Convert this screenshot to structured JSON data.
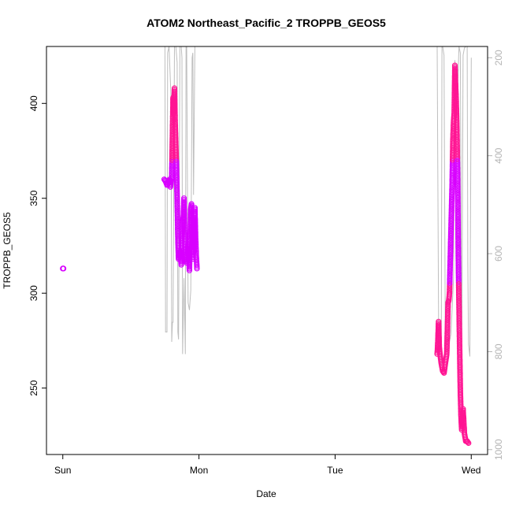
{
  "chart_data": {
    "type": "scatter",
    "title": "ATOM2 Northeast_Pacific_2 TROPPB_GEOS5",
    "xlabel": "Date",
    "ylabel": "TROPPB_GEOS5",
    "x_tick_labels": [
      "Sun",
      "Mon",
      "Tue",
      "Wed"
    ],
    "x_tick_values_days": [
      0,
      1,
      2,
      3
    ],
    "xlim_days": [
      -0.12,
      3.12
    ],
    "ylim": [
      215,
      430
    ],
    "y_ticks": [
      250,
      300,
      350,
      400
    ],
    "y2_ticks": [
      200,
      400,
      600,
      800,
      1000
    ],
    "y2lim": [
      1010,
      177
    ],
    "grid": false,
    "legend": "none",
    "colors": {
      "axis": "#000000",
      "secondary_axis": "#b4b4b4",
      "secondary_line": "#bebebe",
      "points_low": "#ff1493",
      "points_high": "#d800ff"
    },
    "series": [
      {
        "values": [
          [
            0.0,
            313
          ],
          [
            0.005,
            313
          ],
          [
            0.745,
            360
          ],
          [
            0.755,
            359
          ],
          [
            0.765,
            357
          ],
          [
            0.775,
            358
          ],
          [
            0.785,
            360
          ],
          [
            0.79,
            356
          ],
          [
            0.8,
            361
          ],
          [
            0.81,
            403
          ],
          [
            0.815,
            395
          ],
          [
            0.82,
            408
          ],
          [
            0.825,
            390
          ],
          [
            0.83,
            378
          ],
          [
            0.835,
            365
          ],
          [
            0.84,
            350
          ],
          [
            0.845,
            330
          ],
          [
            0.85,
            318
          ],
          [
            0.86,
            322
          ],
          [
            0.87,
            315
          ],
          [
            0.88,
            338
          ],
          [
            0.885,
            340
          ],
          [
            0.89,
            350
          ],
          [
            0.895,
            332
          ],
          [
            0.9,
            320
          ],
          [
            0.91,
            316
          ],
          [
            0.92,
            326
          ],
          [
            0.93,
            312
          ],
          [
            0.935,
            330
          ],
          [
            0.94,
            344
          ],
          [
            0.945,
            347
          ],
          [
            0.95,
            332
          ],
          [
            0.955,
            318
          ],
          [
            0.96,
            340
          ],
          [
            0.965,
            322
          ],
          [
            0.97,
            345
          ],
          [
            0.975,
            330
          ],
          [
            0.98,
            320
          ],
          [
            0.985,
            313
          ],
          [
            2.75,
            268
          ],
          [
            2.755,
            275
          ],
          [
            2.76,
            285
          ],
          [
            2.765,
            272
          ],
          [
            2.77,
            268
          ],
          [
            2.78,
            263
          ],
          [
            2.79,
            259
          ],
          [
            2.8,
            258
          ],
          [
            2.81,
            263
          ],
          [
            2.82,
            268
          ],
          [
            2.83,
            295
          ],
          [
            2.835,
            296
          ],
          [
            2.84,
            300
          ],
          [
            2.85,
            330
          ],
          [
            2.86,
            358
          ],
          [
            2.865,
            380
          ],
          [
            2.87,
            390
          ],
          [
            2.875,
            395
          ],
          [
            2.88,
            420
          ],
          [
            2.885,
            410
          ],
          [
            2.89,
            400
          ],
          [
            2.895,
            385
          ],
          [
            2.9,
            360
          ],
          [
            2.905,
            320
          ],
          [
            2.91,
            295
          ],
          [
            2.915,
            270
          ],
          [
            2.92,
            248
          ],
          [
            2.925,
            235
          ],
          [
            2.93,
            228
          ],
          [
            2.94,
            239
          ],
          [
            2.95,
            226
          ],
          [
            2.96,
            222
          ],
          [
            2.97,
            222
          ],
          [
            2.98,
            221
          ]
        ]
      },
      {
        "type": "line",
        "axis": "right",
        "values": [
          [
            0.75,
            175
          ],
          [
            0.755,
            760
          ],
          [
            0.765,
            760
          ],
          [
            0.77,
            190
          ],
          [
            0.78,
            175
          ],
          [
            0.795,
            280
          ],
          [
            0.8,
            780
          ],
          [
            0.805,
            740
          ],
          [
            0.81,
            740
          ],
          [
            0.82,
            160
          ],
          [
            0.83,
            160
          ],
          [
            0.84,
            210
          ],
          [
            0.845,
            760
          ],
          [
            0.85,
            775
          ],
          [
            0.86,
            175
          ],
          [
            0.87,
            175
          ],
          [
            0.875,
            200
          ],
          [
            0.88,
            805
          ],
          [
            0.89,
            650
          ],
          [
            0.9,
            805
          ],
          [
            0.905,
            175
          ],
          [
            0.91,
            175
          ],
          [
            0.92,
            700
          ],
          [
            0.93,
            715
          ],
          [
            0.94,
            675
          ],
          [
            0.95,
            200
          ],
          [
            0.955,
            190
          ],
          [
            0.96,
            480
          ],
          [
            0.97,
            160
          ],
          [
            2.75,
            175
          ],
          [
            2.76,
            740
          ],
          [
            2.77,
            820
          ],
          [
            2.78,
            830
          ],
          [
            2.785,
            175
          ],
          [
            2.79,
            175
          ],
          [
            2.8,
            195
          ],
          [
            2.81,
            800
          ],
          [
            2.82,
            780
          ],
          [
            2.83,
            775
          ],
          [
            2.84,
            780
          ],
          [
            2.85,
            765
          ],
          [
            2.86,
            710
          ],
          [
            2.87,
            650
          ],
          [
            2.88,
            205
          ],
          [
            2.89,
            330
          ],
          [
            2.9,
            260
          ],
          [
            2.91,
            175
          ],
          [
            2.92,
            190
          ],
          [
            2.93,
            820
          ],
          [
            2.94,
            195
          ],
          [
            2.95,
            180
          ],
          [
            2.96,
            175
          ],
          [
            2.97,
            175
          ],
          [
            2.975,
            620
          ],
          [
            2.98,
            785
          ],
          [
            2.99,
            810
          ],
          [
            3.0,
            200
          ]
        ]
      }
    ]
  }
}
